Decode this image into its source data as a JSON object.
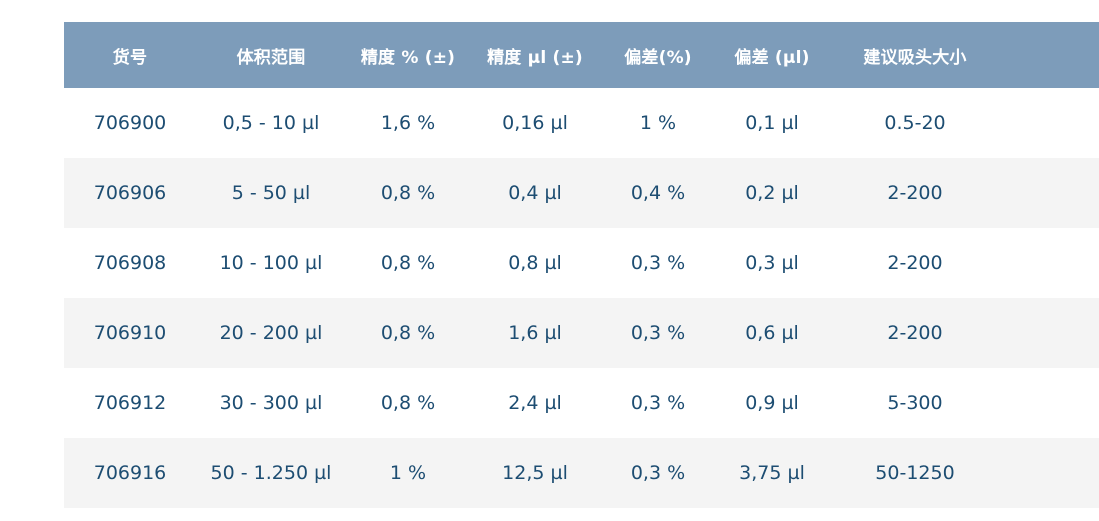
{
  "colors": {
    "header_bg": "#7d9cba",
    "header_text": "#ffffff",
    "body_text": "#1d4d72",
    "row_bg": "#ffffff",
    "row_alt_bg": "#f4f4f4",
    "page_bg": "#ffffff"
  },
  "table": {
    "columns": [
      "货号",
      "体积范围",
      "精度 % (±)",
      "精度 µl (±)",
      "偏差(%)",
      "偏差 (µl)",
      "建议吸头大小"
    ],
    "rows": [
      [
        "706900",
        "0,5 - 10 µl",
        "1,6 %",
        "0,16 µl",
        "1 %",
        "0,1 µl",
        "0.5-20"
      ],
      [
        "706906",
        "5 - 50 µl",
        "0,8 %",
        "0,4 µl",
        "0,4 %",
        "0,2 µl",
        "2-200"
      ],
      [
        "706908",
        "10 - 100 µl",
        "0,8 %",
        "0,8 µl",
        "0,3 %",
        "0,3 µl",
        "2-200"
      ],
      [
        "706910",
        "20 - 200 µl",
        "0,8 %",
        "1,6 µl",
        "0,3 %",
        "0,6 µl",
        "2-200"
      ],
      [
        "706912",
        "30 - 300 µl",
        "0,8 %",
        "2,4 µl",
        "0,3 %",
        "0,9 µl",
        "5-300"
      ],
      [
        "706916",
        "50 - 1.250 µl",
        "1 %",
        "12,5 µl",
        "0,3 %",
        "3,75 µl",
        "50-1250"
      ]
    ]
  }
}
